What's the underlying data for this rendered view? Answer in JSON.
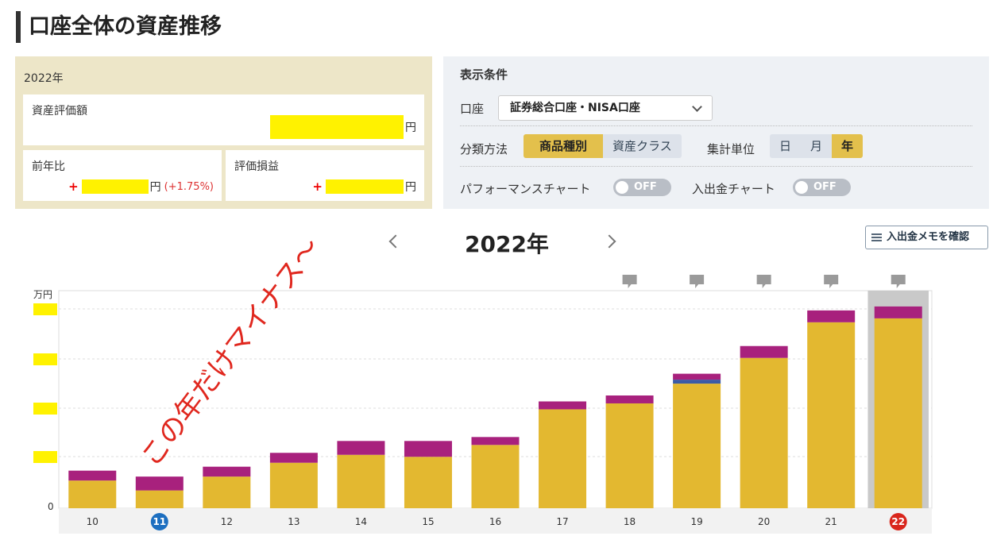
{
  "page": {
    "title": "口座全体の資産推移"
  },
  "summary": {
    "year": "2022年",
    "asset_label": "資産評価額",
    "unit": "円",
    "yoy_label": "前年比",
    "yoy_pct": "(+1.75%)",
    "plus": "+",
    "pl_label": "評価損益"
  },
  "conditions": {
    "title": "表示条件",
    "account_label": "口座",
    "account_value": "証券総合口座・NISA口座",
    "classify_label": "分類方法",
    "classify_options": [
      "商品種別",
      "資産クラス"
    ],
    "classify_selected": 0,
    "unit_label": "集計単位",
    "unit_options": [
      "日",
      "月",
      "年"
    ],
    "unit_selected": 2,
    "perf_label": "パフォーマンスチャート",
    "perf_toggle": "OFF",
    "flow_label": "入出金チャート",
    "flow_toggle": "OFF"
  },
  "chart_header": {
    "year": "2022年",
    "memo_button": "入出金メモを確認"
  },
  "chart_data": {
    "type": "bar",
    "stacked": true,
    "categories": [
      "10",
      "11",
      "12",
      "13",
      "14",
      "15",
      "16",
      "17",
      "18",
      "19",
      "20",
      "21",
      "22"
    ],
    "series": [
      {
        "color": "#e3b830",
        "values": [
          14,
          9,
          16,
          23,
          27,
          26,
          32,
          50,
          53,
          63,
          76,
          94,
          96
        ]
      },
      {
        "color": "#3b5ba5",
        "values": [
          0,
          0,
          0,
          0,
          0,
          0,
          0,
          0,
          0,
          2,
          0,
          0,
          0
        ]
      },
      {
        "color": "#a8217d",
        "values": [
          5,
          7,
          5,
          5,
          7,
          8,
          4,
          4,
          4,
          3,
          6,
          6,
          6
        ]
      }
    ],
    "yunit": "万円",
    "yzero": "0",
    "ymax": 110,
    "highlight_categories": [
      "11",
      "22"
    ],
    "highlight_colors": [
      "#1d6fc0",
      "#d9261c"
    ],
    "selected_category": "22",
    "memo_marker_categories": [
      "18",
      "19",
      "20",
      "21",
      "22"
    ],
    "grid": true
  },
  "annotation": {
    "text": "この年だけマイナス〜",
    "color": "#e0271e"
  }
}
